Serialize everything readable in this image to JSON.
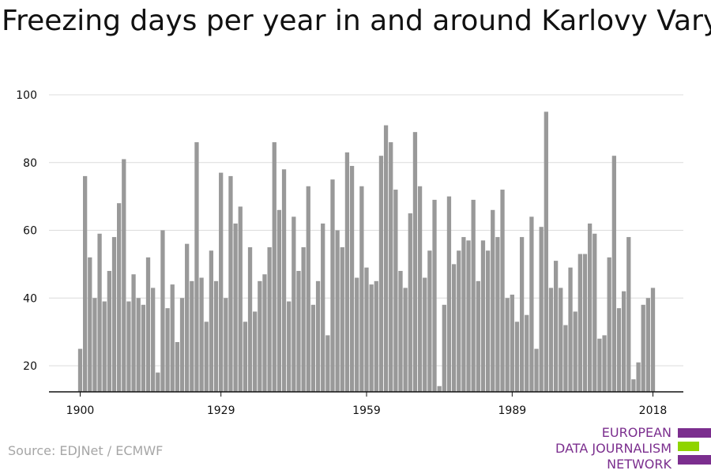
{
  "chart_data": {
    "type": "bar",
    "title": "Freezing days per year in and around Karlovy Vary",
    "xlabel": "",
    "ylabel": "",
    "x_ticks": [
      "1900",
      "1929",
      "1959",
      "1989",
      "2018"
    ],
    "y_ticks": [
      20,
      40,
      60,
      80,
      100
    ],
    "ylim": [
      12,
      100
    ],
    "xlim": [
      1900,
      2018
    ],
    "grid": true,
    "color": "#999999",
    "years": [
      1900,
      1901,
      1902,
      1903,
      1904,
      1905,
      1906,
      1907,
      1908,
      1909,
      1910,
      1911,
      1912,
      1913,
      1914,
      1915,
      1916,
      1917,
      1918,
      1919,
      1920,
      1921,
      1922,
      1923,
      1924,
      1925,
      1926,
      1927,
      1928,
      1929,
      1930,
      1931,
      1932,
      1933,
      1934,
      1935,
      1936,
      1937,
      1938,
      1939,
      1940,
      1941,
      1942,
      1943,
      1944,
      1945,
      1946,
      1947,
      1948,
      1949,
      1950,
      1951,
      1952,
      1953,
      1954,
      1955,
      1956,
      1957,
      1958,
      1959,
      1960,
      1961,
      1962,
      1963,
      1964,
      1965,
      1966,
      1967,
      1968,
      1969,
      1970,
      1971,
      1972,
      1973,
      1974,
      1975,
      1976,
      1977,
      1978,
      1979,
      1980,
      1981,
      1982,
      1983,
      1984,
      1985,
      1986,
      1987,
      1988,
      1989,
      1990,
      1991,
      1992,
      1993,
      1994,
      1995,
      1996,
      1997,
      1998,
      1999,
      2000,
      2001,
      2002,
      2003,
      2004,
      2005,
      2006,
      2007,
      2008,
      2009,
      2010,
      2011,
      2012,
      2013,
      2014,
      2015,
      2016,
      2017,
      2018
    ],
    "values": [
      25,
      76,
      52,
      40,
      59,
      39,
      48,
      58,
      68,
      81,
      39,
      47,
      40,
      38,
      52,
      43,
      18,
      60,
      37,
      44,
      27,
      40,
      56,
      45,
      86,
      46,
      33,
      54,
      45,
      77,
      40,
      76,
      62,
      67,
      33,
      55,
      36,
      45,
      47,
      55,
      86,
      66,
      78,
      39,
      64,
      48,
      55,
      73,
      38,
      45,
      62,
      29,
      75,
      60,
      55,
      83,
      79,
      46,
      73,
      49,
      44,
      45,
      82,
      91,
      86,
      72,
      48,
      43,
      65,
      89,
      73,
      46,
      54,
      69,
      14,
      38,
      70,
      50,
      54,
      58,
      57,
      69,
      45,
      57,
      54,
      66,
      58,
      72,
      40,
      41,
      33,
      58,
      35,
      64,
      25,
      61,
      95,
      43,
      51,
      43,
      32,
      49,
      36,
      53,
      53,
      62,
      59,
      28,
      29,
      52,
      82,
      37,
      42,
      58,
      16,
      21,
      38,
      40,
      43
    ]
  },
  "source": "Source: EDJNet / ECMWF",
  "logo": {
    "line1": "EUROPEAN",
    "line2": "DATA JOURNALISM",
    "line3": "NETWORK",
    "color_purple": "#7b2e8e",
    "color_green": "#8fd400"
  }
}
